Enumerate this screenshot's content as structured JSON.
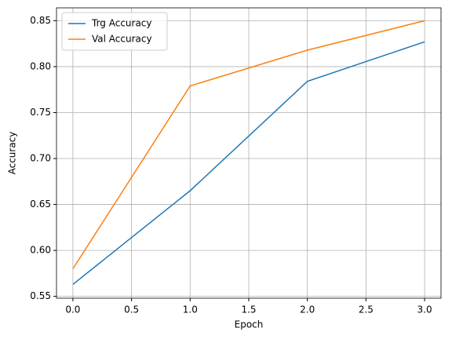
{
  "chart_data": {
    "type": "line",
    "xlabel": "Epoch",
    "ylabel": "Accuracy",
    "x": [
      0,
      1,
      2,
      3
    ],
    "series": [
      {
        "name": "Trg Accuracy",
        "color": "#1f77b4",
        "values": [
          0.563,
          0.665,
          0.784,
          0.827
        ]
      },
      {
        "name": "Val Accuracy",
        "color": "#ff7f0e",
        "values": [
          0.58,
          0.779,
          0.818,
          0.85
        ]
      }
    ],
    "xlim": [
      -0.14,
      3.14
    ],
    "xticks": [
      {
        "value": 0,
        "label": "0.0"
      },
      0.5,
      {
        "value": 1,
        "label": "1.0"
      },
      1.5,
      {
        "value": 2,
        "label": "2.0"
      },
      2.5,
      {
        "value": 3,
        "label": "3.0"
      }
    ],
    "ylim": [
      0.548,
      0.864
    ],
    "yticks": [
      0.55,
      {
        "value": 0.6,
        "label": "0.60"
      },
      0.65,
      {
        "value": 0.7,
        "label": "0.70"
      },
      0.75,
      {
        "value": 0.8,
        "label": "0.80"
      },
      0.85
    ],
    "grid": true,
    "legend": "upper-left"
  }
}
